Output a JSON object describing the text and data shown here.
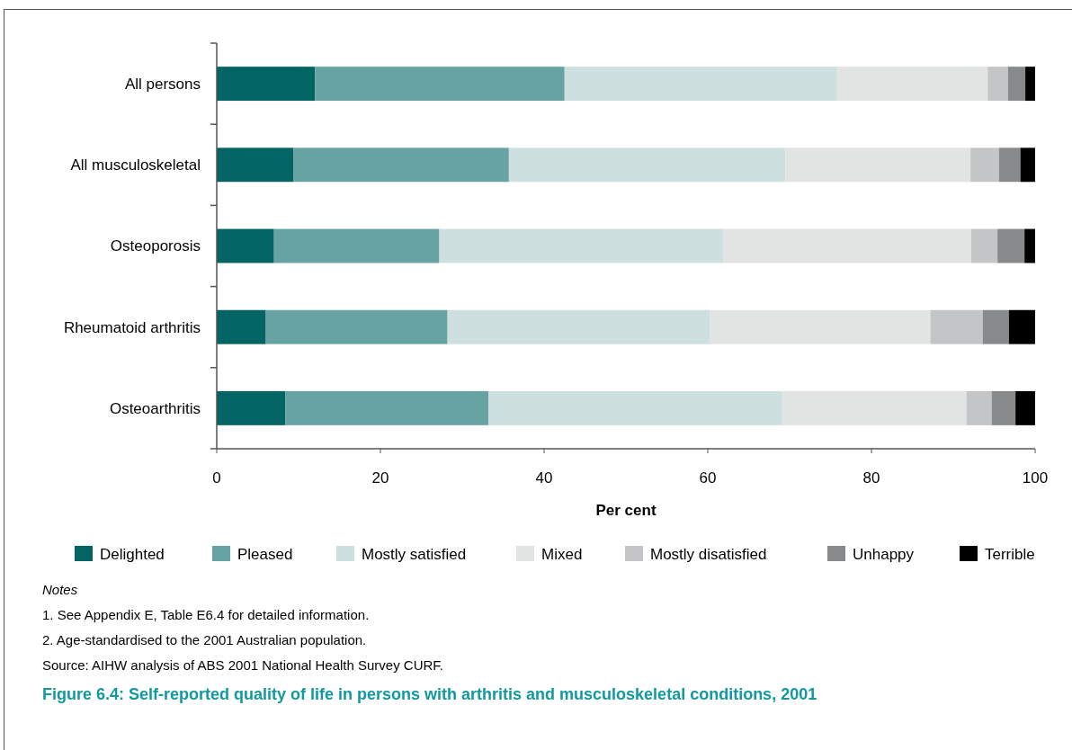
{
  "chart_data": {
    "type": "bar",
    "orientation": "horizontal",
    "stacked": true,
    "title": "Figure 6.4: Self-reported quality of life in persons with arthritis and musculoskeletal conditions, 2001",
    "xlabel": "Per cent",
    "categories": [
      "All persons",
      "All musculoskeletal",
      "Osteoporosis",
      "Rheumatoid arthritis",
      "Osteoarthritis"
    ],
    "series": [
      {
        "name": "Delighted",
        "color": "#036464",
        "values": [
          12.0,
          9.4,
          7.0,
          6.0,
          8.4
        ]
      },
      {
        "name": "Pleased",
        "color": "#67a3a3",
        "values": [
          30.5,
          26.3,
          20.2,
          22.2,
          24.8
        ]
      },
      {
        "name": "Mostly satisfied",
        "color": "#cde0df",
        "values": [
          33.3,
          33.8,
          34.7,
          32.1,
          35.9
        ]
      },
      {
        "name": "Mixed",
        "color": "#e2e4e3",
        "values": [
          18.4,
          22.6,
          30.3,
          26.9,
          22.5
        ]
      },
      {
        "name": "Mostly disatisfied",
        "color": "#c4c5c6",
        "values": [
          2.5,
          3.5,
          3.2,
          6.4,
          3.1
        ]
      },
      {
        "name": "Unhappy",
        "color": "#88898b",
        "values": [
          2.1,
          2.6,
          3.3,
          3.2,
          2.9
        ]
      },
      {
        "name": "Terrible",
        "color": "#000000",
        "values": [
          1.2,
          1.8,
          1.3,
          3.2,
          2.4
        ]
      }
    ],
    "xlim": [
      0,
      100
    ],
    "xticks": [
      0,
      20,
      40,
      60,
      80,
      100
    ],
    "grid": false,
    "legend": "bottom",
    "annotations": [
      "Notes",
      "1.  See Appendix E, Table E6.4 for detailed information.",
      "2.  Age-standardised to the 2001 Australian population.",
      "Source: AIHW analysis of ABS 2001 National Health Survey CURF."
    ]
  }
}
